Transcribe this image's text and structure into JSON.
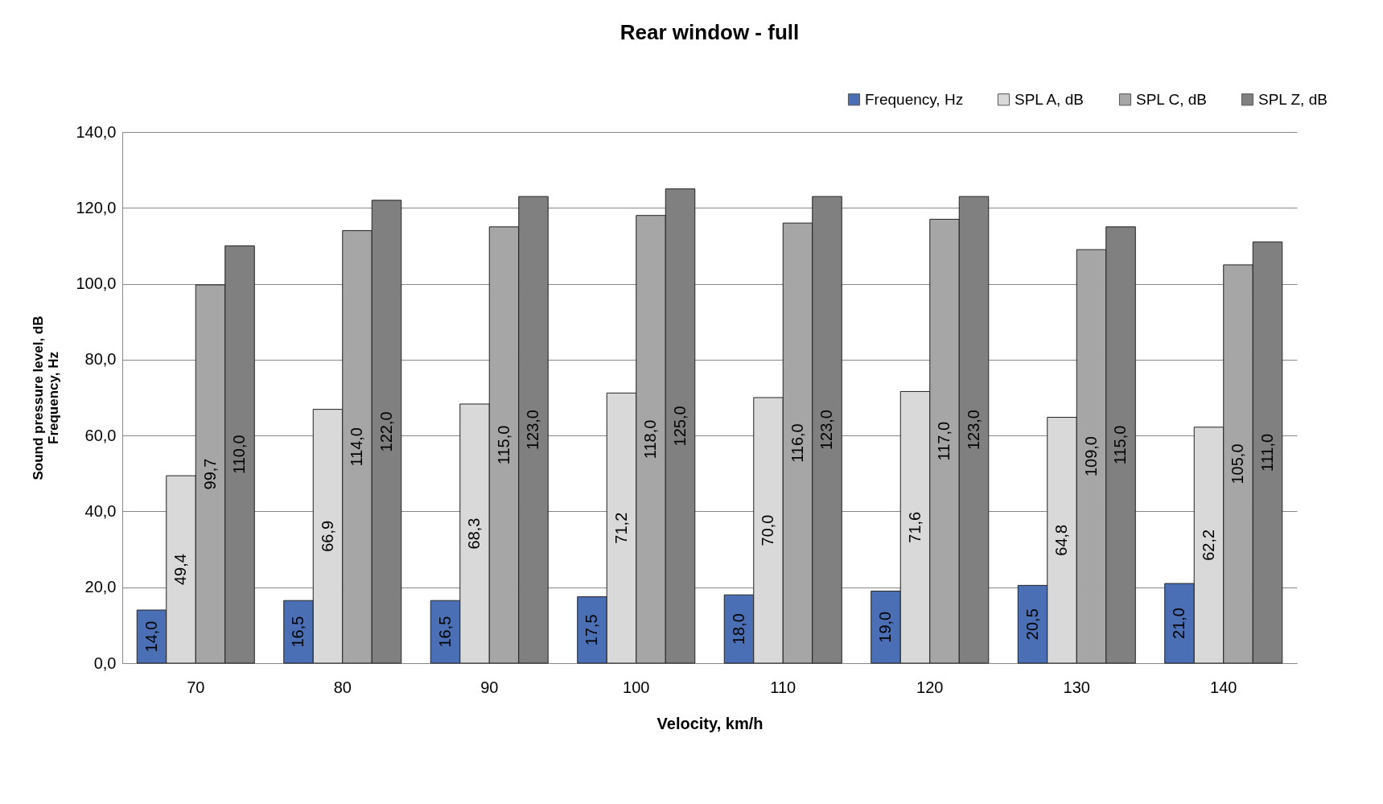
{
  "chart_data": {
    "type": "bar",
    "title": "Rear window  - full",
    "xlabel": "Velocity, km/h",
    "ylabel": "Sound pressure level, dB\nFrequency, Hz",
    "categories": [
      "70",
      "80",
      "90",
      "100",
      "110",
      "120",
      "130",
      "140"
    ],
    "series": [
      {
        "name": "Frequency, Hz",
        "color": "#4a6fb5",
        "values": [
          14.0,
          16.5,
          16.5,
          17.5,
          18.0,
          19.0,
          20.5,
          21.0
        ],
        "value_labels": [
          "14,0",
          "16,5",
          "16,5",
          "17,5",
          "18,0",
          "19,0",
          "20,5",
          "21,0"
        ]
      },
      {
        "name": "SPL A, dB",
        "color": "#d9d9d9",
        "values": [
          49.4,
          66.9,
          68.3,
          71.2,
          70.0,
          71.6,
          64.8,
          62.2
        ],
        "value_labels": [
          "49,4",
          "66,9",
          "68,3",
          "71,2",
          "70,0",
          "71,6",
          "64,8",
          "62,2"
        ]
      },
      {
        "name": "SPL C, dB",
        "color": "#a6a6a6",
        "values": [
          99.7,
          114.0,
          115.0,
          118.0,
          116.0,
          117.0,
          109.0,
          105.0
        ],
        "value_labels": [
          "99,7",
          "114,0",
          "115,0",
          "118,0",
          "116,0",
          "117,0",
          "109,0",
          "105,0"
        ]
      },
      {
        "name": "SPL Z, dB",
        "color": "#808080",
        "values": [
          110.0,
          122.0,
          123.0,
          125.0,
          123.0,
          123.0,
          115.0,
          111.0
        ],
        "value_labels": [
          "110,0",
          "122,0",
          "123,0",
          "125,0",
          "123,0",
          "123,0",
          "115,0",
          "111,0"
        ]
      }
    ],
    "ylim": [
      0,
      140
    ],
    "yticks": [
      {
        "value": 0,
        "label": "0,0"
      },
      {
        "value": 20,
        "label": "20,0"
      },
      {
        "value": 40,
        "label": "40,0"
      },
      {
        "value": 60,
        "label": "60,0"
      },
      {
        "value": 80,
        "label": "80,0"
      },
      {
        "value": 100,
        "label": "100,0"
      },
      {
        "value": 120,
        "label": "120,0"
      },
      {
        "value": 140,
        "label": "140,0"
      }
    ],
    "grid": "y",
    "legend": "top right"
  }
}
